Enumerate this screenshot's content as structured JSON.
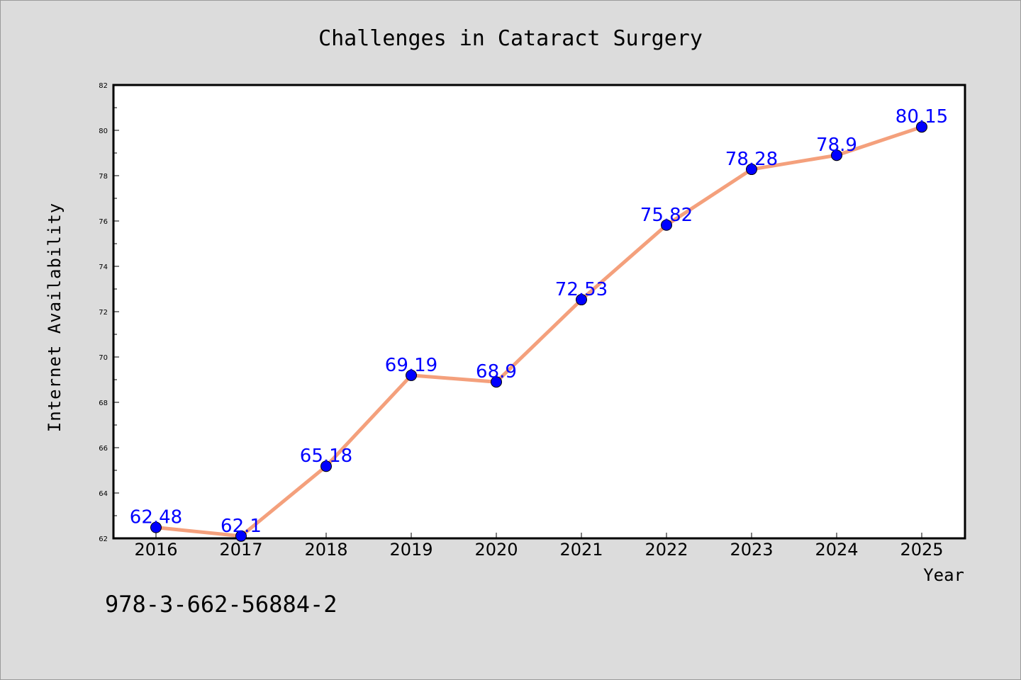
{
  "chart_data": {
    "type": "line",
    "title": "Challenges in Cataract Surgery",
    "xlabel": "Year",
    "ylabel": "Internet Availability",
    "categories": [
      "2016",
      "2017",
      "2018",
      "2019",
      "2020",
      "2021",
      "2022",
      "2023",
      "2024",
      "2025"
    ],
    "series": [
      {
        "values": [
          62.48,
          62.1,
          65.18,
          69.19,
          68.9,
          72.53,
          75.82,
          78.28,
          78.9,
          80.15
        ],
        "data_labels": [
          "62.48",
          "62.1",
          "65.18",
          "69.19",
          "68.9",
          "72.53",
          "75.82",
          "78.28",
          "78.9",
          "80.15"
        ]
      }
    ],
    "ylim": [
      62,
      82
    ],
    "yticks": [
      62,
      64,
      66,
      68,
      70,
      72,
      74,
      76,
      78,
      80,
      82
    ],
    "grid": false,
    "line_color": "#f4a07c",
    "marker_color": "#0000ff"
  },
  "footer": {
    "isbn": "978-3-662-56884-2"
  },
  "colors": {
    "background": "#dcdcdc",
    "plot_background": "#ffffff",
    "data_label": "#0000ff"
  }
}
